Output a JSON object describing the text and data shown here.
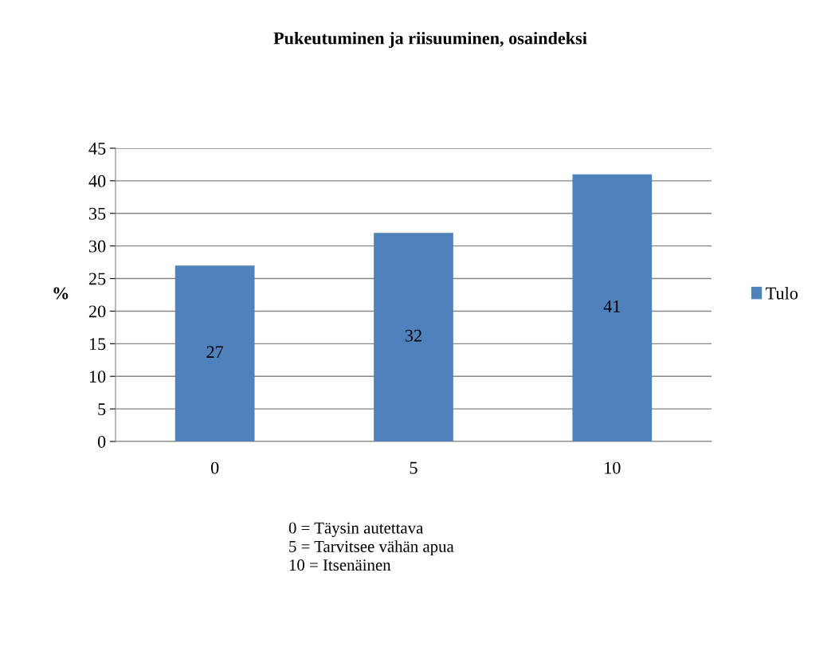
{
  "chart_data": {
    "type": "bar",
    "title": "Pukeutuminen ja riisuuminen, osaindeksi",
    "categories": [
      "0",
      "5",
      "10"
    ],
    "series": [
      {
        "name": "Tulo",
        "color": "#4f81bd",
        "values": [
          27,
          32,
          41
        ]
      }
    ],
    "ylabel": "%",
    "ylim": [
      0,
      45
    ],
    "yticks": [
      0,
      5,
      10,
      15,
      20,
      25,
      30,
      35,
      40,
      45
    ],
    "grid": "y",
    "legend": "right",
    "data_labels": true,
    "annotations": [
      "0 = Täysin autettava\n5 = Tarvitsee vähän apua\n10 = Itsenäinen"
    ]
  }
}
